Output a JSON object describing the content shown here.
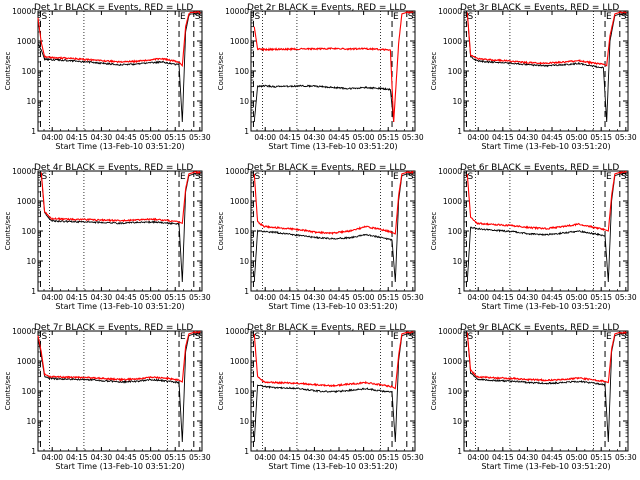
{
  "chart_data": [
    {
      "type": "line",
      "title": "Det 1r BLACK = Events, RED = LLD",
      "ylabel": "Counts/sec",
      "xlabel": "Start Time (13-Feb-10 03:51:20)",
      "yscale": "log",
      "ylim": [
        1,
        10000
      ],
      "yticks": [
        "1",
        "10",
        "100",
        "1000",
        "10000"
      ],
      "xticks": [
        "04:00",
        "04:15",
        "04:30",
        "04:45",
        "05:00",
        "05:15",
        "05:30"
      ],
      "xlim_min": [
        0,
        100
      ],
      "markers": [
        {
          "label": "S",
          "t": 1.5
        },
        {
          "label": "E",
          "t": 86
        },
        {
          "label": "S",
          "t": 95
        }
      ],
      "series": [
        {
          "name": "Events",
          "color": "#000000",
          "t": [
            0,
            2,
            4,
            8,
            15,
            30,
            40,
            50,
            60,
            70,
            75,
            80,
            86,
            88,
            90,
            92,
            93,
            95,
            99
          ],
          "values": [
            800,
            500,
            250,
            240,
            230,
            200,
            180,
            160,
            170,
            190,
            200,
            180,
            160,
            2,
            2000,
            7000,
            8000,
            8000,
            8000
          ]
        },
        {
          "name": "LLD",
          "color": "#ff0000",
          "t": [
            0,
            2,
            4,
            8,
            15,
            30,
            40,
            50,
            60,
            70,
            75,
            80,
            86,
            88,
            90,
            92,
            93,
            95,
            99
          ],
          "values": [
            6000,
            900,
            300,
            280,
            270,
            240,
            220,
            200,
            210,
            240,
            260,
            230,
            200,
            150,
            3000,
            8000,
            9000,
            9000,
            9000
          ]
        }
      ]
    },
    {
      "type": "line",
      "title": "Det 2r BLACK = Events, RED = LLD",
      "ylabel": "Counts/sec",
      "xlabel": "Start Time (13-Feb-10 03:51:20)",
      "yscale": "log",
      "ylim": [
        1,
        10000
      ],
      "yticks": [
        "1",
        "10",
        "100",
        "1000",
        "10000"
      ],
      "xticks": [
        "04:00",
        "04:15",
        "04:30",
        "04:45",
        "05:00",
        "05:15",
        "05:30"
      ],
      "xlim_min": [
        0,
        100
      ],
      "markers": [
        {
          "label": "S",
          "t": 1.5
        },
        {
          "label": "E",
          "t": 86
        },
        {
          "label": "S",
          "t": 95
        }
      ],
      "series": [
        {
          "name": "Events",
          "color": "#000000",
          "t": [
            2,
            4,
            8,
            15,
            30,
            40,
            50,
            60,
            70,
            80,
            85,
            87
          ],
          "values": [
            2,
            30,
            32,
            30,
            32,
            31,
            28,
            26,
            28,
            26,
            24,
            2
          ]
        },
        {
          "name": "LLD",
          "color": "#ff0000",
          "t": [
            2,
            4,
            8,
            15,
            30,
            40,
            50,
            60,
            70,
            80,
            85,
            87,
            90,
            92,
            95,
            99
          ],
          "values": [
            3000,
            550,
            520,
            530,
            540,
            550,
            560,
            540,
            560,
            520,
            500,
            2,
            800,
            8000,
            9000,
            9000
          ]
        }
      ]
    },
    {
      "type": "line",
      "title": "Det 3r BLACK = Events, RED = LLD",
      "ylabel": "Counts/sec",
      "xlabel": "Start Time (13-Feb-10 03:51:20)",
      "yscale": "log",
      "ylim": [
        1,
        10000
      ],
      "yticks": [
        "1",
        "10",
        "100",
        "1000",
        "10000"
      ],
      "xticks": [
        "04:00",
        "04:15",
        "04:30",
        "04:45",
        "05:00",
        "05:15",
        "05:30"
      ],
      "xlim_min": [
        0,
        100
      ],
      "markers": [
        {
          "label": "S",
          "t": 1.5
        },
        {
          "label": "E",
          "t": 86
        },
        {
          "label": "S",
          "t": 95
        }
      ],
      "series": [
        {
          "name": "Events",
          "color": "#000000",
          "t": [
            2,
            4,
            8,
            15,
            30,
            40,
            50,
            60,
            70,
            80,
            85,
            87,
            89,
            92,
            95,
            99
          ],
          "values": [
            9000,
            300,
            220,
            200,
            180,
            160,
            150,
            160,
            180,
            140,
            130,
            2,
            1000,
            7000,
            8000,
            8000
          ]
        },
        {
          "name": "LLD",
          "color": "#ff0000",
          "t": [
            2,
            4,
            8,
            15,
            30,
            40,
            50,
            60,
            70,
            80,
            85,
            87,
            89,
            92,
            95,
            99
          ],
          "values": [
            9000,
            350,
            260,
            240,
            210,
            190,
            180,
            200,
            220,
            180,
            170,
            150,
            1500,
            8000,
            9000,
            9000
          ]
        }
      ]
    },
    {
      "type": "line",
      "title": "Det 4r BLACK = Events, RED = LLD",
      "ylabel": "Counts/sec",
      "xlabel": "Start Time (13-Feb-10 03:51:20)",
      "yscale": "log",
      "ylim": [
        1,
        10000
      ],
      "yticks": [
        "1",
        "10",
        "100",
        "1000",
        "10000"
      ],
      "xticks": [
        "04:00",
        "04:15",
        "04:30",
        "04:45",
        "05:00",
        "05:15",
        "05:30"
      ],
      "xlim_min": [
        0,
        100
      ],
      "markers": [
        {
          "label": "S",
          "t": 1.5
        },
        {
          "label": "E",
          "t": 86
        },
        {
          "label": "S",
          "t": 95
        }
      ],
      "series": [
        {
          "name": "Events",
          "color": "#000000",
          "t": [
            2,
            4,
            8,
            15,
            30,
            40,
            50,
            60,
            70,
            80,
            86,
            88,
            90,
            92,
            95,
            99
          ],
          "values": [
            8000,
            400,
            220,
            210,
            200,
            190,
            180,
            190,
            200,
            180,
            170,
            2,
            2000,
            7000,
            8000,
            8000
          ]
        },
        {
          "name": "LLD",
          "color": "#ff0000",
          "t": [
            2,
            4,
            8,
            15,
            30,
            40,
            50,
            60,
            70,
            80,
            86,
            88,
            90,
            92,
            95,
            99
          ],
          "values": [
            9000,
            450,
            260,
            250,
            240,
            230,
            220,
            230,
            250,
            220,
            200,
            180,
            2500,
            8000,
            9000,
            9000
          ]
        }
      ]
    },
    {
      "type": "line",
      "title": "Det 5r BLACK = Events, RED = LLD",
      "ylabel": "Counts/sec",
      "xlabel": "Start Time (13-Feb-10 03:51:20)",
      "yscale": "log",
      "ylim": [
        1,
        10000
      ],
      "yticks": [
        "1",
        "10",
        "100",
        "1000",
        "10000"
      ],
      "xticks": [
        "04:00",
        "04:15",
        "04:30",
        "04:45",
        "05:00",
        "05:15",
        "05:30"
      ],
      "xlim_min": [
        0,
        100
      ],
      "markers": [
        {
          "label": "S",
          "t": 1.5
        },
        {
          "label": "E",
          "t": 86
        },
        {
          "label": "S",
          "t": 95
        }
      ],
      "series": [
        {
          "name": "Events",
          "color": "#000000",
          "t": [
            2,
            4,
            8,
            15,
            30,
            40,
            50,
            60,
            70,
            80,
            86,
            88,
            90,
            92,
            95,
            99
          ],
          "values": [
            2,
            100,
            95,
            90,
            70,
            60,
            55,
            60,
            75,
            60,
            50,
            2,
            1000,
            7000,
            8000,
            8000
          ]
        },
        {
          "name": "LLD",
          "color": "#ff0000",
          "t": [
            2,
            4,
            8,
            15,
            30,
            40,
            50,
            60,
            70,
            80,
            86,
            88,
            90,
            92,
            95,
            99
          ],
          "values": [
            8000,
            200,
            140,
            130,
            110,
            90,
            85,
            100,
            140,
            110,
            90,
            80,
            1500,
            8000,
            9000,
            9000
          ]
        }
      ]
    },
    {
      "type": "line",
      "title": "Det 6r BLACK = Events, RED = LLD",
      "ylabel": "Counts/sec",
      "xlabel": "Start Time (13-Feb-10 03:51:20)",
      "yscale": "log",
      "ylim": [
        1,
        10000
      ],
      "yticks": [
        "1",
        "10",
        "100",
        "1000",
        "10000"
      ],
      "xticks": [
        "04:00",
        "04:15",
        "04:30",
        "04:45",
        "05:00",
        "05:15",
        "05:30"
      ],
      "xlim_min": [
        0,
        100
      ],
      "markers": [
        {
          "label": "S",
          "t": 1.5
        },
        {
          "label": "E",
          "t": 86
        },
        {
          "label": "S",
          "t": 95
        }
      ],
      "series": [
        {
          "name": "Events",
          "color": "#000000",
          "t": [
            2,
            4,
            8,
            15,
            30,
            40,
            50,
            60,
            70,
            80,
            86,
            88,
            90,
            92,
            95,
            99
          ],
          "values": [
            2,
            130,
            120,
            110,
            95,
            80,
            75,
            85,
            100,
            80,
            70,
            2,
            1000,
            7000,
            8000,
            8000
          ]
        },
        {
          "name": "LLD",
          "color": "#ff0000",
          "t": [
            2,
            4,
            8,
            15,
            30,
            40,
            50,
            60,
            70,
            80,
            86,
            88,
            90,
            92,
            95,
            99
          ],
          "values": [
            8000,
            300,
            180,
            170,
            150,
            130,
            120,
            140,
            170,
            130,
            110,
            100,
            1500,
            8000,
            9000,
            9000
          ]
        }
      ]
    },
    {
      "type": "line",
      "title": "Det 7r BLACK = Events, RED = LLD",
      "ylabel": "Counts/sec",
      "xlabel": "Start Time (13-Feb-10 03:51:20)",
      "yscale": "log",
      "ylim": [
        1,
        10000
      ],
      "yticks": [
        "1",
        "10",
        "100",
        "1000",
        "10000"
      ],
      "xticks": [
        "04:00",
        "04:15",
        "04:30",
        "04:45",
        "05:00",
        "05:15",
        "05:30"
      ],
      "xlim_min": [
        0,
        100
      ],
      "markers": [
        {
          "label": "S",
          "t": 1.5
        },
        {
          "label": "E",
          "t": 86
        },
        {
          "label": "S",
          "t": 95
        }
      ],
      "series": [
        {
          "name": "Events",
          "color": "#000000",
          "t": [
            0,
            2,
            4,
            8,
            15,
            30,
            40,
            50,
            60,
            70,
            80,
            86,
            88,
            90,
            92,
            95,
            99
          ],
          "values": [
            6000,
            1500,
            300,
            260,
            250,
            240,
            220,
            200,
            210,
            240,
            210,
            190,
            2,
            2000,
            7000,
            8000,
            8000
          ]
        },
        {
          "name": "LLD",
          "color": "#ff0000",
          "t": [
            0,
            2,
            4,
            8,
            15,
            30,
            40,
            50,
            60,
            70,
            80,
            86,
            88,
            90,
            92,
            95,
            99
          ],
          "values": [
            7000,
            2000,
            350,
            300,
            290,
            280,
            260,
            240,
            250,
            290,
            260,
            230,
            200,
            3000,
            8000,
            9000,
            9000
          ]
        }
      ]
    },
    {
      "type": "line",
      "title": "Det 8r BLACK = Events, RED = LLD",
      "ylabel": "Counts/sec",
      "xlabel": "Start Time (13-Feb-10 03:51:20)",
      "yscale": "log",
      "ylim": [
        1,
        10000
      ],
      "yticks": [
        "1",
        "10",
        "100",
        "1000",
        "10000"
      ],
      "xticks": [
        "04:00",
        "04:15",
        "04:30",
        "04:45",
        "05:00",
        "05:15",
        "05:30"
      ],
      "xlim_min": [
        0,
        100
      ],
      "markers": [
        {
          "label": "S",
          "t": 1.5
        },
        {
          "label": "E",
          "t": 86
        },
        {
          "label": "S",
          "t": 95
        }
      ],
      "series": [
        {
          "name": "Events",
          "color": "#000000",
          "t": [
            2,
            4,
            8,
            15,
            30,
            40,
            50,
            60,
            70,
            80,
            86,
            88,
            90,
            92,
            95,
            99
          ],
          "values": [
            2,
            160,
            140,
            130,
            120,
            100,
            95,
            105,
            120,
            100,
            90,
            2,
            1000,
            7000,
            8000,
            8000
          ]
        },
        {
          "name": "LLD",
          "color": "#ff0000",
          "t": [
            2,
            4,
            8,
            15,
            30,
            40,
            50,
            60,
            70,
            80,
            86,
            88,
            90,
            92,
            95,
            99
          ],
          "values": [
            8000,
            300,
            200,
            190,
            180,
            160,
            150,
            170,
            190,
            160,
            140,
            120,
            1500,
            8000,
            9000,
            9000
          ]
        }
      ]
    },
    {
      "type": "line",
      "title": "Det 9r BLACK = Events, RED = LLD",
      "ylabel": "Counts/sec",
      "xlabel": "Start Time (13-Feb-10 03:51:20)",
      "yscale": "log",
      "ylim": [
        1,
        10000
      ],
      "yticks": [
        "1",
        "10",
        "100",
        "1000",
        "10000"
      ],
      "xticks": [
        "04:00",
        "04:15",
        "04:30",
        "04:45",
        "05:00",
        "05:15",
        "05:30"
      ],
      "xlim_min": [
        0,
        100
      ],
      "markers": [
        {
          "label": "S",
          "t": 1.5
        },
        {
          "label": "E",
          "t": 86
        },
        {
          "label": "S",
          "t": 95
        }
      ],
      "series": [
        {
          "name": "Events",
          "color": "#000000",
          "t": [
            2,
            4,
            8,
            15,
            30,
            40,
            50,
            60,
            70,
            80,
            86,
            88,
            90,
            92,
            95,
            99
          ],
          "values": [
            9000,
            400,
            250,
            230,
            210,
            190,
            180,
            190,
            210,
            180,
            160,
            2,
            2000,
            7000,
            8000,
            8000
          ]
        },
        {
          "name": "LLD",
          "color": "#ff0000",
          "t": [
            2,
            4,
            8,
            15,
            30,
            40,
            50,
            60,
            70,
            80,
            86,
            88,
            90,
            92,
            95,
            99
          ],
          "values": [
            9000,
            500,
            300,
            280,
            260,
            240,
            230,
            240,
            270,
            230,
            210,
            190,
            2500,
            8000,
            9000,
            9000
          ]
        }
      ]
    }
  ]
}
